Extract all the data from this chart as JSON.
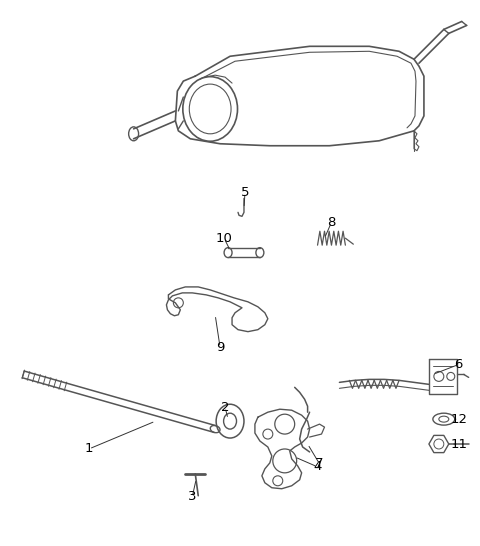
{
  "background_color": "#ffffff",
  "line_color": "#555555",
  "label_color": "#000000",
  "fig_width": 4.8,
  "fig_height": 5.46,
  "dpi": 100
}
